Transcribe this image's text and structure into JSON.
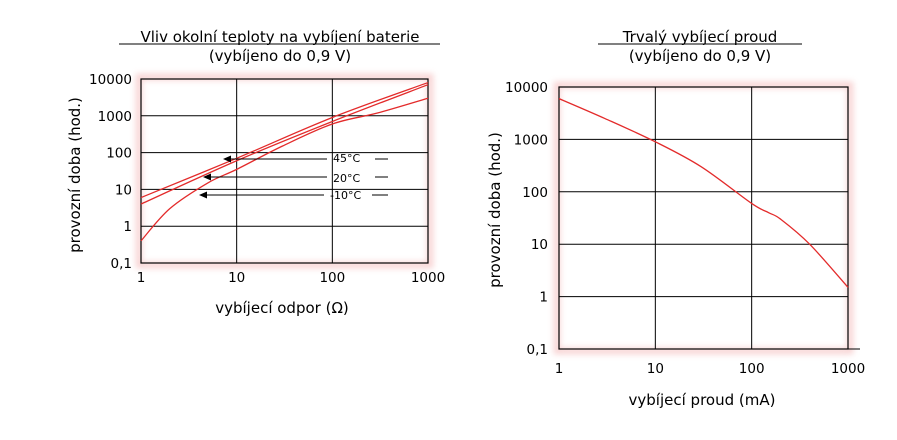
{
  "chart_data": [
    {
      "type": "line",
      "title": "Vliv okolní teploty na vybíjení baterie",
      "subtitle": "(vybíjeno do 0,9 V)",
      "xlabel": "vybíjecí odpor (Ω)",
      "ylabel": "provozní doba (hod.)",
      "xscale": "log",
      "yscale": "log",
      "xlim": [
        1,
        1000
      ],
      "ylim": [
        0.1,
        10000
      ],
      "x_tick_labels": [
        "1",
        "10",
        "100",
        "1000"
      ],
      "y_tick_labels": [
        "0,1",
        "1",
        "10",
        "100",
        "1000",
        "10000"
      ],
      "grid": true,
      "line_color": "#e32b2b",
      "series": [
        {
          "name": "45°C",
          "x": [
            1,
            10,
            100,
            1000
          ],
          "y": [
            6,
            70,
            900,
            8000
          ]
        },
        {
          "name": "20°C",
          "x": [
            1,
            10,
            100,
            1000
          ],
          "y": [
            4,
            60,
            700,
            7000
          ]
        },
        {
          "name": "-10°C",
          "x": [
            1,
            2,
            5,
            10,
            30,
            100,
            300,
            1000
          ],
          "y": [
            0.4,
            3,
            15,
            35,
            150,
            600,
            1200,
            3000
          ]
        }
      ],
      "annotations": [
        "45°C",
        "20°C",
        "-10°C"
      ]
    },
    {
      "type": "line",
      "title": "Trvalý vybíjecí proud",
      "subtitle": "(vybíjeno do 0,9 V)",
      "xlabel": "vybíjecí proud (mA)",
      "ylabel": "provozní doba (hod.)",
      "xscale": "log",
      "yscale": "log",
      "xlim": [
        1,
        1000
      ],
      "ylim": [
        0.1,
        10000
      ],
      "x_tick_labels": [
        "1",
        "10",
        "100",
        "1000"
      ],
      "y_tick_labels": [
        "0,1",
        "1",
        "10",
        "100",
        "1000",
        "10000"
      ],
      "grid": true,
      "line_color": "#e32b2b",
      "series": [
        {
          "x": [
            1,
            3,
            10,
            30,
            100,
            150,
            200,
            400,
            1000
          ],
          "y": [
            6000,
            2500,
            900,
            300,
            60,
            40,
            30,
            10,
            1.5
          ]
        }
      ]
    }
  ]
}
